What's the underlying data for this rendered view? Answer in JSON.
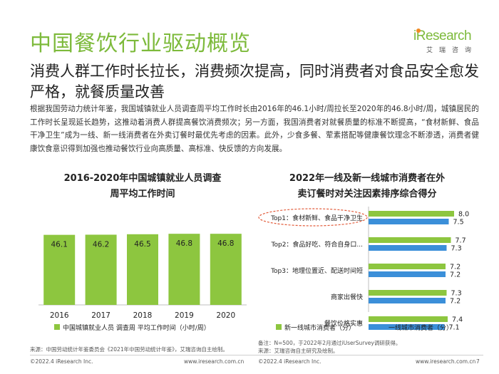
{
  "title": "中国餐饮行业驱动概览",
  "logo": {
    "text": "Research",
    "subtext": "艾瑞咨询"
  },
  "subtitle": "消费人群工作时长拉长，消费频次提高，同时消费者对食品安全愈发严格，就餐质量改善",
  "body": "根据我国劳动力统计年鉴，我国城镇就业人员调查周平均工作时长由2016年的46.1小时/周拉长至2020年的46.8小时/周，城镇居民的工作时长呈现延长趋势，这推动着消费人群提高餐饮消费频次；另一方面，我国消费者对就餐质量的标准不断提高，“食材新鲜、食品干净卫生”成为一线、新一线消费者在外卖订餐时最优先考虑的因素。此外，少食多餐、荤素搭配等健康餐饮理念不断渗透，消费者健康饮食意识得到加强也推动餐饮行业向高质量、高标准、快反馈的方向发展。",
  "chart1": {
    "title_line1": "2016-2020年中国城镇就业人员调查",
    "title_line2": "周平均工作时间",
    "legend": "中国城镇就业人员 调查周 平均工作时间（小时/周）",
    "source": "来源：中国劳动统计年鉴委员会《2021年中国劳动统计年鉴》，艾瑞咨询自主绘制。"
  },
  "chart2": {
    "title_line1": "2022年一线及新一线城市消费者在外",
    "title_line2": "卖订餐时对关注因素排序综合得分",
    "legend_a": "新一线城市消费者（分）",
    "legend_b": "一线城市消费者（分）",
    "note": "备注：N=500，于2022年2月通过iUserSurvey调研获得。",
    "source": "来源：艾瑞咨询自主研究及绘制。"
  },
  "chart_data": [
    {
      "type": "bar",
      "title": "2016-2020年中国城镇就业人员调查周平均工作时间",
      "categories": [
        "2016",
        "2017",
        "2018",
        "2019",
        "2020"
      ],
      "values": [
        46.1,
        46.2,
        46.5,
        46.8,
        46.8
      ],
      "series_name": "中国城镇就业人员 调查周 平均工作时间（小时/周）",
      "color": "#8dc63f",
      "ylim": [
        0,
        60
      ]
    },
    {
      "type": "bar",
      "orientation": "horizontal",
      "title": "2022年一线及新一线城市消费者在外卖订餐时对关注因素排序综合得分",
      "categories": [
        "Top1：食材新鲜、食品干净卫生",
        "Top2：食品好吃、符合自身口...",
        "Top3：地理位置近、配送时间短",
        "商家出餐快",
        "餐饮价格实惠"
      ],
      "series": [
        {
          "name": "新一线城市消费者（分）",
          "values": [
            8.0,
            7.7,
            7.2,
            7.3,
            7.4
          ],
          "color": "#8dc63f"
        },
        {
          "name": "一线城市消费者（分）",
          "values": [
            7.5,
            7.3,
            7.2,
            7.2,
            7.1
          ],
          "color": "#3b8fd9"
        }
      ],
      "xlim": [
        0,
        9
      ]
    }
  ],
  "footer": {
    "left_copyright": "©2022.4 iResearch Inc.",
    "left_url": "www.iresearch.com.cn",
    "right_copyright": "©2022.4 iResearch Inc.",
    "right_url": "www.iresearch.com.cn",
    "page_number": "7"
  }
}
